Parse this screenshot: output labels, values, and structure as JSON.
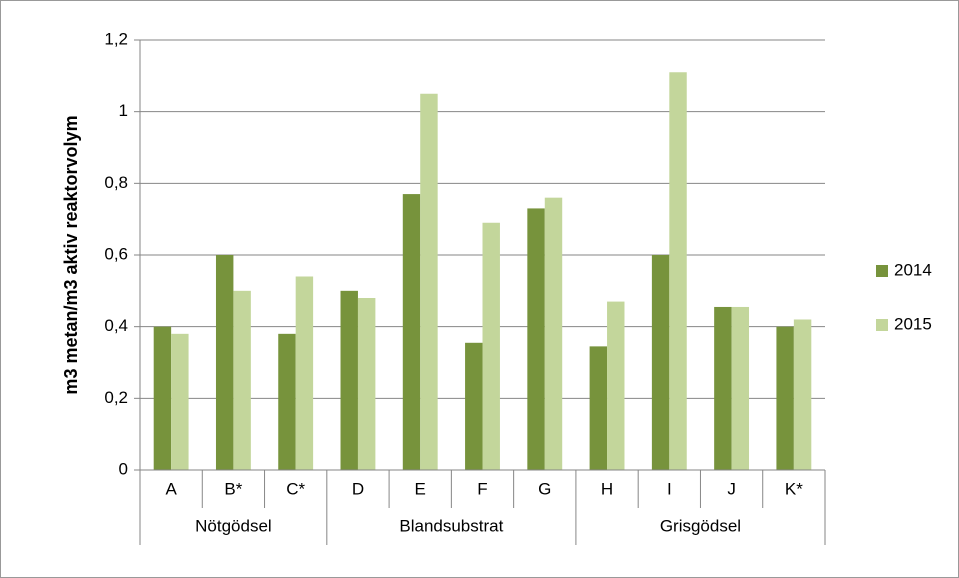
{
  "chart_data": {
    "type": "bar",
    "y_label": "m3 metan/m3 aktiv reaktorvolym",
    "groups": [
      {
        "name": "Nötgödsel",
        "categories": [
          "A",
          "B*",
          "C*"
        ]
      },
      {
        "name": "Blandsubstrat",
        "categories": [
          "D",
          "E",
          "F",
          "G"
        ]
      },
      {
        "name": "Grisgödsel",
        "categories": [
          "H",
          "I",
          "J",
          "K*"
        ]
      }
    ],
    "series": [
      {
        "name": "2014",
        "color": "#77933c",
        "values": [
          0.4,
          0.6,
          0.38,
          0.5,
          0.77,
          0.355,
          0.73,
          0.345,
          0.6,
          0.455,
          0.4
        ]
      },
      {
        "name": "2015",
        "color": "#c3d69b",
        "values": [
          0.38,
          0.5,
          0.54,
          0.48,
          1.05,
          0.69,
          0.76,
          0.47,
          1.11,
          0.455,
          0.42
        ]
      }
    ],
    "ylim": [
      0,
      1.2
    ],
    "yticks": [
      0,
      {
        "value": 0.2,
        "label": "0,2"
      },
      {
        "value": 0.4,
        "label": "0,4"
      },
      {
        "value": 0.6,
        "label": "0,6"
      },
      {
        "value": 0.8,
        "label": "0,8"
      },
      1,
      {
        "value": 1.2,
        "label": "1,2"
      }
    ],
    "grid": true,
    "legend": "right"
  }
}
